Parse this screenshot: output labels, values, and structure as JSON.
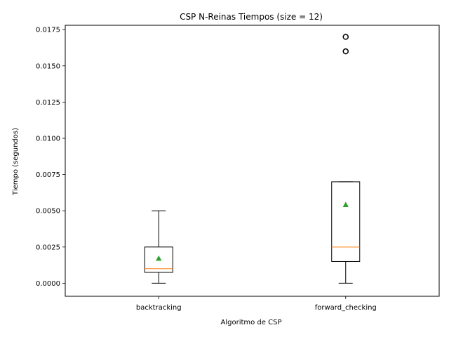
{
  "chart_data": {
    "type": "box",
    "title": "CSP N-Reinas Tiempos (size = 12)",
    "xlabel": "Algoritmo de CSP",
    "ylabel": "Tiempo (segundos)",
    "ylim": [
      -0.0009,
      0.0178
    ],
    "yticks": [
      0.0,
      0.0025,
      0.005,
      0.0075,
      0.01,
      0.0125,
      0.015,
      0.0175
    ],
    "ytick_labels": [
      "0.0000",
      "0.0025",
      "0.0050",
      "0.0075",
      "0.0100",
      "0.0125",
      "0.0150",
      "0.0175"
    ],
    "categories": [
      "backtracking",
      "forward_checking"
    ],
    "boxes": [
      {
        "name": "backtracking",
        "whisker_low": 0.0,
        "q1": 0.00075,
        "median": 0.001,
        "q3": 0.0025,
        "whisker_high": 0.005,
        "mean": 0.0017,
        "outliers": []
      },
      {
        "name": "forward_checking",
        "whisker_low": 0.0,
        "q1": 0.0015,
        "median": 0.0025,
        "q3": 0.007,
        "whisker_high": 0.007,
        "mean": 0.0054,
        "outliers": [
          0.016,
          0.017
        ]
      }
    ],
    "colors": {
      "box": "#000000",
      "median": "#ff7f0e",
      "mean": "#2ca02c",
      "outlier": "#000000"
    }
  }
}
